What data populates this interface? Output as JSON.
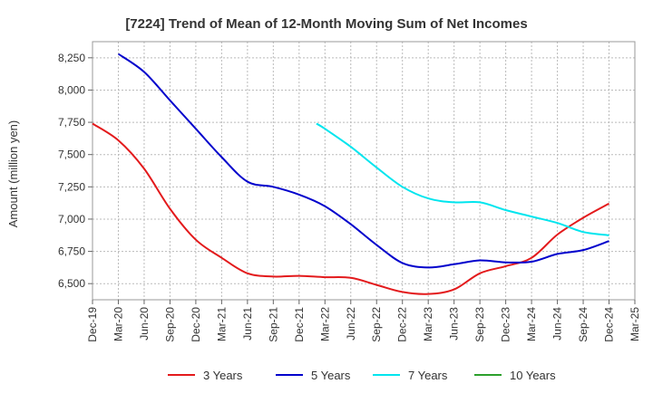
{
  "chart_data": {
    "type": "line",
    "title": "[7224]  Trend of Mean of 12-Month Moving Sum of Net Incomes",
    "ylabel": "Amount (million yen)",
    "xlabel": "",
    "ylim": [
      6375,
      8375
    ],
    "yticks": [
      6500,
      6750,
      7000,
      7250,
      7500,
      7750,
      8000,
      8250
    ],
    "ytick_labels": [
      "6,500",
      "6,750",
      "7,000",
      "7,250",
      "7,500",
      "7,750",
      "8,000",
      "8,250"
    ],
    "x_categories": [
      "Dec-19",
      "Mar-20",
      "Jun-20",
      "Sep-20",
      "Dec-20",
      "Mar-21",
      "Jun-21",
      "Sep-21",
      "Dec-21",
      "Mar-22",
      "Jun-22",
      "Sep-22",
      "Dec-22",
      "Mar-23",
      "Jun-23",
      "Sep-23",
      "Dec-23",
      "Mar-24",
      "Jun-24",
      "Sep-24",
      "Dec-24",
      "Mar-25"
    ],
    "grid": true,
    "legend_position": "bottom",
    "series": [
      {
        "name": "3 Years",
        "color": "#e31a1c",
        "points": [
          [
            0,
            7740
          ],
          [
            1,
            7610
          ],
          [
            2,
            7390
          ],
          [
            3,
            7080
          ],
          [
            4,
            6840
          ],
          [
            5,
            6700
          ],
          [
            6,
            6580
          ],
          [
            7,
            6555
          ],
          [
            8,
            6560
          ],
          [
            9,
            6550
          ],
          [
            10,
            6545
          ],
          [
            11,
            6490
          ],
          [
            12,
            6435
          ],
          [
            13,
            6420
          ],
          [
            14,
            6455
          ],
          [
            15,
            6580
          ],
          [
            16,
            6635
          ],
          [
            17,
            6700
          ],
          [
            18,
            6880
          ],
          [
            19,
            7010
          ],
          [
            20,
            7120
          ]
        ]
      },
      {
        "name": "5 Years",
        "color": "#0000cc",
        "points": [
          [
            1,
            8280
          ],
          [
            2,
            8140
          ],
          [
            3,
            7920
          ],
          [
            4,
            7700
          ],
          [
            5,
            7480
          ],
          [
            6,
            7290
          ],
          [
            7,
            7250
          ],
          [
            8,
            7190
          ],
          [
            9,
            7100
          ],
          [
            10,
            6960
          ],
          [
            11,
            6800
          ],
          [
            12,
            6660
          ],
          [
            13,
            6625
          ],
          [
            14,
            6650
          ],
          [
            15,
            6680
          ],
          [
            16,
            6665
          ],
          [
            17,
            6670
          ],
          [
            18,
            6730
          ],
          [
            19,
            6760
          ],
          [
            20,
            6830
          ]
        ]
      },
      {
        "name": "7 Years",
        "color": "#00e5ee",
        "points": [
          [
            8.67,
            7740
          ],
          [
            9,
            7700
          ],
          [
            10,
            7560
          ],
          [
            11,
            7400
          ],
          [
            12,
            7250
          ],
          [
            13,
            7160
          ],
          [
            14,
            7130
          ],
          [
            15,
            7130
          ],
          [
            16,
            7070
          ],
          [
            17,
            7020
          ],
          [
            18,
            6970
          ],
          [
            19,
            6900
          ],
          [
            20,
            6875
          ]
        ]
      },
      {
        "name": "10 Years",
        "color": "#2ca02c",
        "points": []
      }
    ]
  }
}
